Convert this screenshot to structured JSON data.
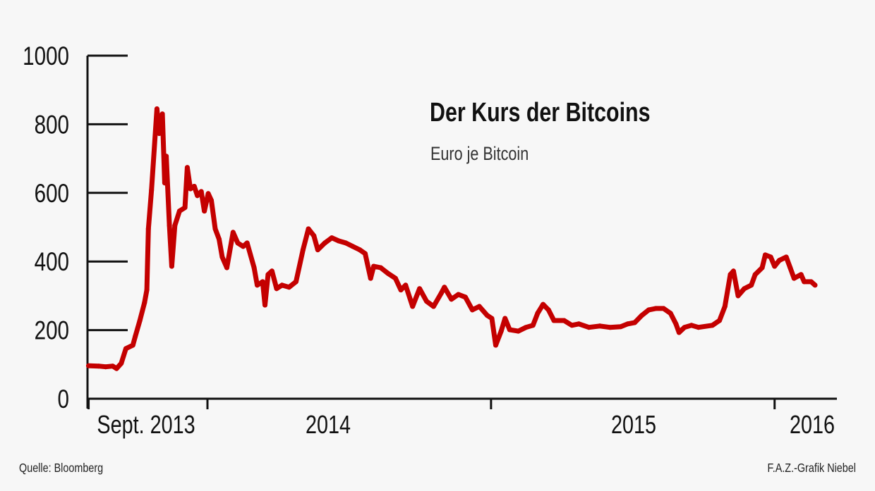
{
  "chart_data": {
    "type": "line",
    "title": "Der Kurs der Bitcoins",
    "subtitle": "Euro je Bitcoin",
    "xlabel": "",
    "ylabel": "",
    "ylim": [
      0,
      1000
    ],
    "xlim": [
      "2013-08-01",
      "2016-03-20"
    ],
    "yticks": [
      "0",
      "200",
      "400",
      "600",
      "800",
      "1000"
    ],
    "xtick_labels": [
      "Sept. 2013",
      "2014",
      "2015",
      "2016"
    ],
    "x_tick_marks": [
      "2013-08-01",
      "2014-01-01",
      "2015-01-01",
      "2016-01-01"
    ],
    "grid": false,
    "line_color": "#c40000",
    "series": [
      {
        "x": [
          "2013-08-01",
          "2013-08-14",
          "2013-08-23",
          "2013-09-01",
          "2013-09-06",
          "2013-09-12",
          "2013-09-18",
          "2013-09-27",
          "2013-09-30",
          "2013-10-06",
          "2013-10-12",
          "2013-10-15",
          "2013-10-17",
          "2013-10-21",
          "2013-10-28",
          "2013-10-31",
          "2013-11-04",
          "2013-11-07",
          "2013-11-09",
          "2013-11-13",
          "2013-11-16",
          "2013-11-20",
          "2013-11-26",
          "2013-12-03",
          "2013-12-06",
          "2013-12-10",
          "2013-12-15",
          "2013-12-19",
          "2013-12-24",
          "2013-12-28",
          "2014-01-02",
          "2014-01-06",
          "2014-01-11",
          "2014-01-16",
          "2014-01-20",
          "2014-01-26",
          "2014-02-03",
          "2014-02-09",
          "2014-02-16",
          "2014-02-21",
          "2014-03-02",
          "2014-03-06",
          "2014-03-13",
          "2014-03-16",
          "2014-03-20",
          "2014-03-25",
          "2014-03-31",
          "2014-04-07",
          "2014-04-16",
          "2014-04-25",
          "2014-05-04",
          "2014-05-11",
          "2014-05-18",
          "2014-05-23",
          "2014-06-01",
          "2014-06-10",
          "2014-06-19",
          "2014-06-28",
          "2014-07-07",
          "2014-07-16",
          "2014-07-23",
          "2014-07-30",
          "2014-08-03",
          "2014-08-12",
          "2014-08-21",
          "2014-08-31",
          "2014-09-07",
          "2014-09-13",
          "2014-09-22",
          "2014-10-01",
          "2014-10-10",
          "2014-10-19",
          "2014-10-29",
          "2014-11-02",
          "2014-11-11",
          "2014-11-20",
          "2014-11-29",
          "2014-12-08",
          "2014-12-17",
          "2014-12-27",
          "2015-01-02",
          "2015-01-07",
          "2015-01-14",
          "2015-01-19",
          "2015-01-25",
          "2015-02-05",
          "2015-02-15",
          "2015-02-24",
          "2015-03-02",
          "2015-03-09",
          "2015-03-16",
          "2015-03-23",
          "2015-04-05",
          "2015-04-15",
          "2015-04-24",
          "2015-05-07",
          "2015-05-21",
          "2015-06-03",
          "2015-06-17",
          "2015-06-26",
          "2015-07-05",
          "2015-07-14",
          "2015-07-23",
          "2015-08-01",
          "2015-08-11",
          "2015-08-20",
          "2015-08-27",
          "2015-08-31",
          "2015-09-07",
          "2015-09-16",
          "2015-09-25",
          "2015-10-13",
          "2015-10-22",
          "2015-10-29",
          "2015-11-05",
          "2015-11-09",
          "2015-11-15",
          "2015-11-23",
          "2015-12-02",
          "2015-12-07",
          "2015-12-16",
          "2015-12-20",
          "2015-12-27",
          "2016-01-01",
          "2016-01-07",
          "2016-01-16",
          "2016-01-21",
          "2016-01-26",
          "2016-02-04",
          "2016-02-08",
          "2016-02-17",
          "2016-02-22"
        ],
        "y": [
          96,
          95,
          93,
          95,
          88,
          103,
          146,
          156,
          181,
          228,
          280,
          317,
          495,
          608,
          845,
          773,
          830,
          629,
          707,
          505,
          386,
          505,
          547,
          557,
          674,
          612,
          619,
          592,
          604,
          547,
          598,
          578,
          495,
          465,
          413,
          382,
          485,
          454,
          444,
          454,
          382,
          331,
          341,
          273,
          362,
          372,
          321,
          331,
          325,
          341,
          434,
          495,
          475,
          434,
          454,
          469,
          460,
          454,
          444,
          434,
          423,
          351,
          386,
          382,
          366,
          351,
          317,
          331,
          269,
          321,
          284,
          269,
          308,
          325,
          290,
          304,
          296,
          259,
          269,
          243,
          234,
          156,
          197,
          234,
          201,
          197,
          208,
          214,
          249,
          275,
          259,
          228,
          228,
          214,
          218,
          208,
          212,
          208,
          210,
          218,
          222,
          243,
          259,
          263,
          263,
          249,
          218,
          193,
          208,
          214,
          208,
          214,
          228,
          269,
          362,
          372,
          300,
          321,
          331,
          362,
          382,
          419,
          413,
          386,
          403,
          413,
          382,
          351,
          362,
          341,
          341,
          331
        ]
      }
    ]
  },
  "source": "Quelle: Bloomberg",
  "credit": "F.A.Z.-Grafik Niebel"
}
